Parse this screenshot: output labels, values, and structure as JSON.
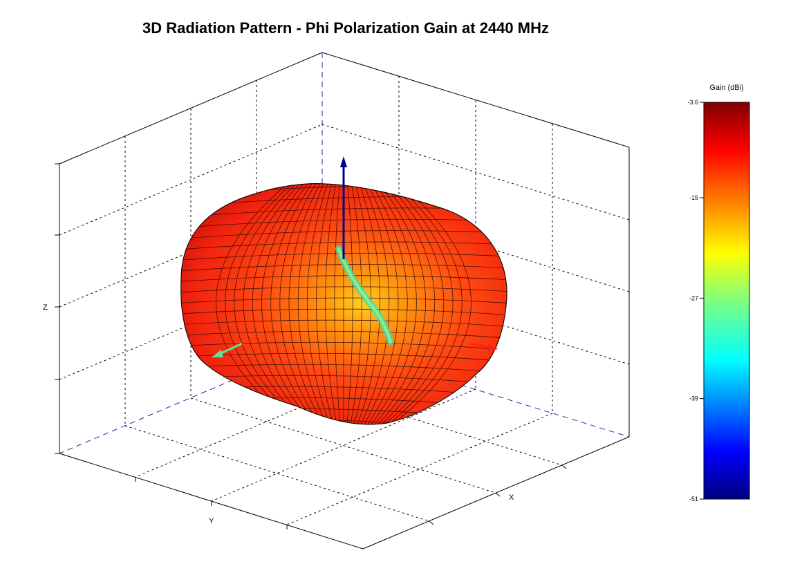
{
  "chart_data": {
    "type": "surface",
    "title": "3D Radiation Pattern - Phi Polarization Gain at 2440 MHz",
    "axes": {
      "xlabel": "X",
      "ylabel": "Y",
      "zlabel": "Z"
    },
    "grid": true,
    "colorbar": {
      "title": "Gain (dBi)",
      "min": -51,
      "max": -3.6,
      "ticks": [
        "-3.6",
        "-15",
        "-27",
        "-39",
        "-51"
      ],
      "tick_values": [
        -3.6,
        -15,
        -27,
        -39,
        -51
      ],
      "colormap": "jet",
      "placement": "right"
    },
    "axis_arrows": [
      {
        "axis": "x",
        "color": "#ff2020"
      },
      {
        "axis": "y",
        "color": "#66dd99"
      },
      {
        "axis": "z",
        "color": "#00008b"
      }
    ]
  }
}
